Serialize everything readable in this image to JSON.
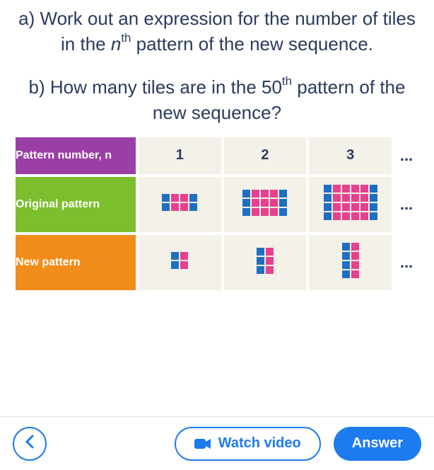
{
  "question": {
    "a_pre": "a) Work out an expression for the number of tiles in the ",
    "a_var": "n",
    "a_sup": "th",
    "a_post": " pattern of the new sequence.",
    "b_pre": "b) How many tiles are in the ",
    "b_num": "50",
    "b_sup": "th",
    "b_post": " pattern of the new sequence?"
  },
  "table": {
    "header_label": "Pattern number, n",
    "original_label": "Original pattern",
    "new_label": "New pattern",
    "columns": [
      "1",
      "2",
      "3"
    ],
    "ellipsis": "...",
    "header_bg": "#9b3fa6",
    "original_bg": "#7bbf2e",
    "new_bg": "#f28c1b",
    "data_bg": "#f4f1e8",
    "tile_blue": "#1d6fc4",
    "tile_pink": "#e83f8f",
    "original_patterns": [
      [
        [
          "B",
          "P",
          "P",
          "B"
        ],
        [
          "B",
          "P",
          "P",
          "B"
        ]
      ],
      [
        [
          "B",
          "P",
          "P",
          "P",
          "B"
        ],
        [
          "B",
          "P",
          "P",
          "P",
          "B"
        ],
        [
          "B",
          "P",
          "P",
          "P",
          "B"
        ]
      ],
      [
        [
          "B",
          "P",
          "P",
          "P",
          "P",
          "B"
        ],
        [
          "B",
          "P",
          "P",
          "P",
          "P",
          "B"
        ],
        [
          "B",
          "P",
          "P",
          "P",
          "P",
          "B"
        ],
        [
          "B",
          "P",
          "P",
          "P",
          "P",
          "B"
        ]
      ]
    ],
    "new_patterns": [
      [
        [
          "B",
          "P"
        ],
        [
          "B",
          "P"
        ]
      ],
      [
        [
          "B",
          "P"
        ],
        [
          "B",
          "P"
        ],
        [
          "B",
          "P"
        ]
      ],
      [
        [
          "B",
          "P"
        ],
        [
          "B",
          "P"
        ],
        [
          "B",
          "P"
        ],
        [
          "B",
          "P"
        ]
      ]
    ]
  },
  "buttons": {
    "back_glyph": "<",
    "watch_label": "Watch video",
    "answer_label": "Answer"
  },
  "colors": {
    "primary": "#1d7bf0",
    "text": "#2a3b5f"
  }
}
